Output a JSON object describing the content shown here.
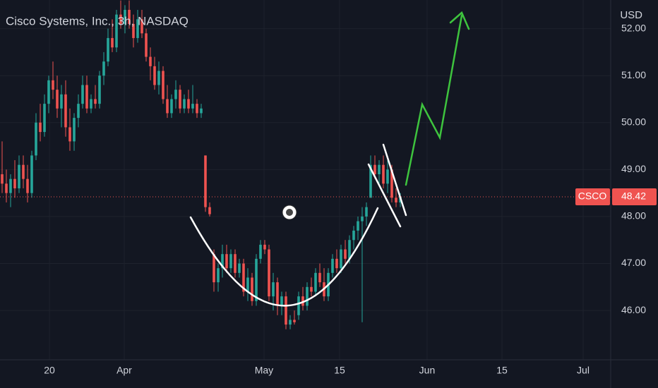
{
  "chart_data": {
    "type": "candlestick",
    "title": "Cisco Systems, Inc., 3h, NASDAQ",
    "currency": "USD",
    "symbol": "CSCO",
    "up_color": "#26a69a",
    "down_color": "#ef5350",
    "grid": true,
    "x": [
      0,
      1,
      2,
      3,
      4,
      5,
      6,
      7,
      8,
      9,
      10,
      11,
      12,
      13,
      14,
      15,
      16,
      17,
      18,
      19,
      20,
      21,
      22,
      23,
      24,
      25,
      26,
      27,
      28,
      29,
      30,
      31,
      32,
      33,
      34,
      35,
      36,
      37,
      38,
      39,
      40,
      41,
      42,
      43,
      44,
      45,
      46,
      47,
      48,
      49,
      50,
      51,
      52,
      53,
      54,
      55,
      56,
      57,
      58,
      59,
      60,
      61,
      62,
      63,
      64,
      65,
      66,
      67,
      68,
      69,
      70,
      71,
      72,
      73,
      74,
      75,
      76,
      77,
      78,
      79,
      80,
      81,
      82,
      83,
      84,
      85,
      86,
      87,
      88,
      89,
      90,
      91,
      92,
      93,
      94
    ],
    "open": [
      48.9,
      48.7,
      48.5,
      48.8,
      48.6,
      49.1,
      48.8,
      48.5,
      49.3,
      50.0,
      49.8,
      50.4,
      50.9,
      50.7,
      50.3,
      50.6,
      49.9,
      49.6,
      50.1,
      50.4,
      50.8,
      50.3,
      50.5,
      50.4,
      51.0,
      51.3,
      51.8,
      51.6,
      52.3,
      52.1,
      52.4,
      52.1,
      51.8,
      52.2,
      51.9,
      51.4,
      51.2,
      50.8,
      51.1,
      50.5,
      50.2,
      50.5,
      50.7,
      50.3,
      50.5,
      50.3,
      50.4,
      50.2,
      49.3,
      48.2,
      47.2,
      46.6,
      46.9,
      47.2,
      46.9,
      47.2,
      46.8,
      47.0,
      46.4,
      46.7,
      46.2,
      47.1,
      47.4,
      47.3,
      46.3,
      46.6,
      46.1,
      46.3,
      45.7,
      45.8,
      45.9,
      46.3,
      46.1,
      46.5,
      46.4,
      46.8,
      46.6,
      46.3,
      46.8,
      47.1,
      46.9,
      47.3,
      47.1,
      47.5,
      47.7,
      47.9,
      48.0,
      48.4,
      49.1,
      48.9,
      49.1,
      48.7,
      49.0,
      48.4,
      48.3
    ],
    "high": [
      49.6,
      49.0,
      48.9,
      49.2,
      49.3,
      49.3,
      49.1,
      49.4,
      50.2,
      50.4,
      50.6,
      51.0,
      51.3,
      51.0,
      50.8,
      50.9,
      50.3,
      50.2,
      50.6,
      51.0,
      51.0,
      50.6,
      50.8,
      51.1,
      51.5,
      52.0,
      52.2,
      52.4,
      52.6,
      52.5,
      52.6,
      52.3,
      52.4,
      52.4,
      52.0,
      51.6,
      51.4,
      51.3,
      51.2,
      50.8,
      50.6,
      50.9,
      50.8,
      50.6,
      50.7,
      50.8,
      50.5,
      50.4,
      49.3,
      48.3,
      47.3,
      47.0,
      47.4,
      47.4,
      47.3,
      47.3,
      47.1,
      47.1,
      46.9,
      46.8,
      47.2,
      47.5,
      47.5,
      47.4,
      46.8,
      46.7,
      46.4,
      46.4,
      45.9,
      46.0,
      46.4,
      46.5,
      46.6,
      46.7,
      46.9,
      47.0,
      46.9,
      46.9,
      47.2,
      47.3,
      47.4,
      47.5,
      47.6,
      47.8,
      48.0,
      48.2,
      48.3,
      49.3,
      49.3,
      49.2,
      49.3,
      49.2,
      49.1,
      48.6,
      48.5
    ],
    "low": [
      48.5,
      48.3,
      48.2,
      48.4,
      48.5,
      48.6,
      48.3,
      48.4,
      49.2,
      49.6,
      49.7,
      50.2,
      50.5,
      50.1,
      49.9,
      49.7,
      49.4,
      49.4,
      49.9,
      50.3,
      50.2,
      50.2,
      50.3,
      50.3,
      50.8,
      51.2,
      51.5,
      51.5,
      52.0,
      51.9,
      52.0,
      51.6,
      51.7,
      51.8,
      51.3,
      50.9,
      50.7,
      50.6,
      50.4,
      50.1,
      50.1,
      50.3,
      50.2,
      50.2,
      50.2,
      50.2,
      50.1,
      50.1,
      48.1,
      48.0,
      46.4,
      46.4,
      46.7,
      46.8,
      46.8,
      46.7,
      46.7,
      46.3,
      46.2,
      46.1,
      46.1,
      47.0,
      47.2,
      46.2,
      46.0,
      45.9,
      45.9,
      45.6,
      45.6,
      45.7,
      45.8,
      46.0,
      46.0,
      46.3,
      46.3,
      46.5,
      46.2,
      46.2,
      46.7,
      46.8,
      46.8,
      47.0,
      47.0,
      47.3,
      47.5,
      45.75,
      47.8,
      48.4,
      48.8,
      48.7,
      48.6,
      48.5,
      48.3,
      48.2,
      48.2
    ],
    "close": [
      48.7,
      48.5,
      48.8,
      48.6,
      49.1,
      48.8,
      48.5,
      49.3,
      50.0,
      49.8,
      50.4,
      50.9,
      50.7,
      50.3,
      50.6,
      49.9,
      49.6,
      50.1,
      50.4,
      50.8,
      50.3,
      50.5,
      50.4,
      51.0,
      51.3,
      51.8,
      51.6,
      52.3,
      52.1,
      52.4,
      52.1,
      51.8,
      52.2,
      51.9,
      51.4,
      51.2,
      50.8,
      51.1,
      50.5,
      50.2,
      50.5,
      50.7,
      50.3,
      50.5,
      50.3,
      50.4,
      50.2,
      50.3,
      48.2,
      48.05,
      46.6,
      46.9,
      47.2,
      46.9,
      47.2,
      46.8,
      47.0,
      46.4,
      46.7,
      46.2,
      47.1,
      47.4,
      47.3,
      46.3,
      46.6,
      46.1,
      46.3,
      45.7,
      45.8,
      45.75,
      46.3,
      46.1,
      46.5,
      46.4,
      46.8,
      46.6,
      46.3,
      46.8,
      47.1,
      46.9,
      47.3,
      47.1,
      47.5,
      47.7,
      47.9,
      48.0,
      48.2,
      49.1,
      48.9,
      49.1,
      48.7,
      49.0,
      48.4,
      48.3,
      48.42
    ],
    "xlim": [
      -0.5,
      143.67
    ],
    "xticks": [
      {
        "value": 11.17,
        "label": "20"
      },
      {
        "value": 28.83,
        "label": "Apr"
      },
      {
        "value": 61.83,
        "label": "May"
      },
      {
        "value": 79.67,
        "label": "15"
      },
      {
        "value": 100.33,
        "label": "Jun"
      },
      {
        "value": 118,
        "label": "15"
      },
      {
        "value": 137.17,
        "label": "Jul"
      }
    ],
    "ylim": [
      44.95,
      52.61
    ],
    "yticks": [
      {
        "value": 46,
        "label": "46.00"
      },
      {
        "value": 47,
        "label": "47.00"
      },
      {
        "value": 48,
        "label": "48.00"
      },
      {
        "value": 49,
        "label": "49.00"
      },
      {
        "value": 50,
        "label": "50.00"
      },
      {
        "value": 51,
        "label": "51.00"
      },
      {
        "value": 52,
        "label": "52.00"
      }
    ]
  }
}
